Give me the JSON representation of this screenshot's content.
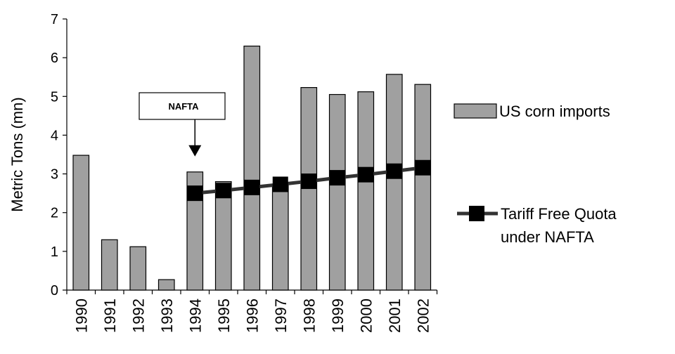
{
  "chart_data": {
    "type": "bar",
    "title": "",
    "xlabel": "",
    "ylabel": "Metric Tons (mn)",
    "ylim": [
      0,
      7
    ],
    "yticks": [
      0,
      1,
      2,
      3,
      4,
      5,
      6,
      7
    ],
    "grid": false,
    "legend_position": "right",
    "categories": [
      "1990",
      "1991",
      "1992",
      "1993",
      "1994",
      "1995",
      "1996",
      "1997",
      "1998",
      "1999",
      "2000",
      "2001",
      "2002"
    ],
    "series": [
      {
        "name": "US corn imports",
        "kind": "bar",
        "color": "#a0a0a0",
        "values": [
          3.48,
          1.3,
          1.12,
          0.27,
          3.05,
          2.8,
          6.3,
          2.7,
          5.23,
          5.05,
          5.12,
          5.57,
          5.31
        ]
      },
      {
        "name": "Tariff Free Quota under NAFTA",
        "kind": "line",
        "color": "#000000",
        "marker": "square",
        "values": [
          null,
          null,
          null,
          null,
          2.5,
          2.57,
          2.65,
          2.73,
          2.81,
          2.9,
          2.98,
          3.07,
          3.16
        ]
      }
    ],
    "legend": {
      "bar_label": "US corn imports",
      "line_label_line1": "Tariff Free Quota",
      "line_label_line2": "under NAFTA"
    },
    "annotation": {
      "text": "NAFTA",
      "category": "1994",
      "arrow_to_value": 3.45
    }
  }
}
